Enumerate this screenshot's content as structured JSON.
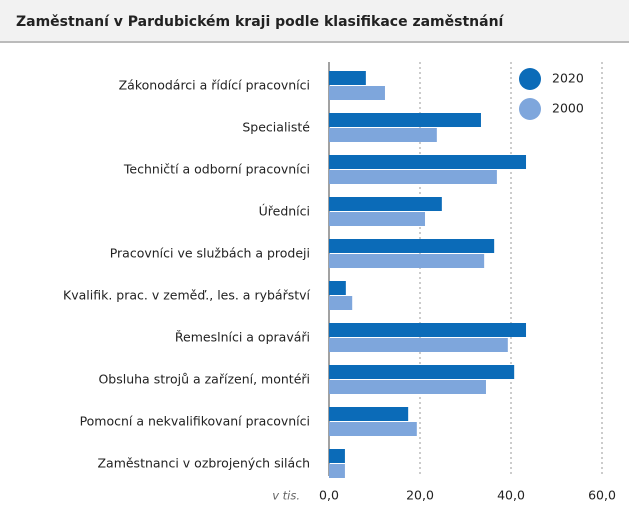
{
  "chart_data": {
    "type": "hbar",
    "title": "Zaměstnaní v Pardubickém kraji podle klasifikace zaměstnání",
    "x_label": "v tis.",
    "categories": [
      "Zákonodárci a řídící pracovníci",
      "Specialisté",
      "Techničtí a odborní pracovníci",
      "Úředníci",
      "Pracovníci ve službách a prodeji",
      "Kvalifik. prac. v zeměď., les. a rybářství",
      "Řemeslníci a opraváři",
      "Obsluha strojů a zařízení, montéři",
      "Pomocní a nekvalifikovaní pracovníci",
      "Zaměstnanci v ozbrojených silách"
    ],
    "series": [
      {
        "name": "2020",
        "color": "#0b6bb8",
        "values": [
          8.1,
          33.4,
          43.3,
          24.8,
          36.3,
          3.7,
          43.3,
          40.7,
          17.4,
          3.5
        ]
      },
      {
        "name": "2000",
        "color": "#7ea6dc",
        "values": [
          12.3,
          23.7,
          36.9,
          21.1,
          34.1,
          5.1,
          39.3,
          34.5,
          19.3,
          3.5
        ]
      }
    ],
    "xlim": [
      0,
      60
    ],
    "xticks": [
      {
        "value": 0,
        "label": "0,0"
      },
      {
        "value": 20,
        "label": "20,0"
      },
      {
        "value": 40,
        "label": "40,0"
      },
      {
        "value": 60,
        "label": "60,0"
      }
    ],
    "grid": true,
    "legend": "top-right"
  }
}
